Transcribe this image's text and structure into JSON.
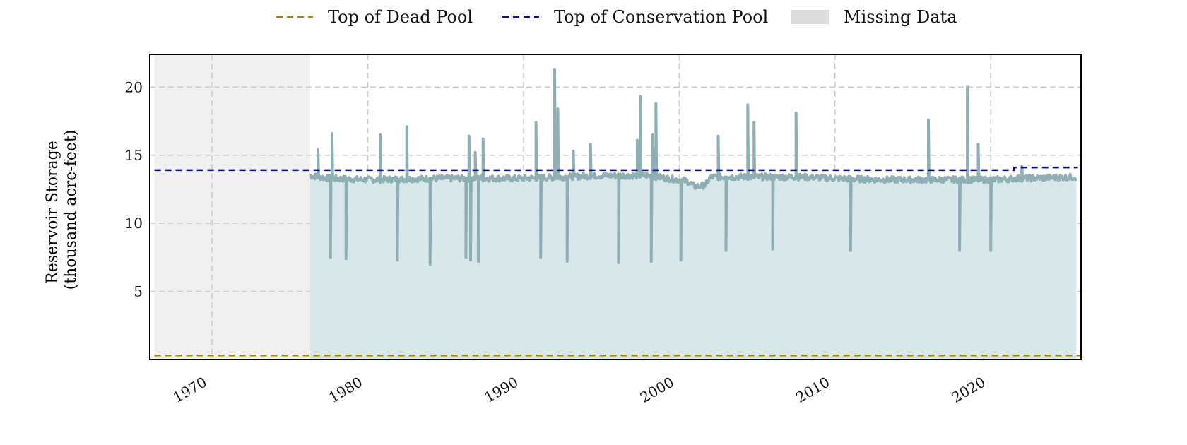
{
  "legend": {
    "dead_pool": "Top of Dead Pool",
    "conservation_pool": "Top of Conservation Pool",
    "missing_data": "Missing Data"
  },
  "colors": {
    "storage_line": "#8fafb5",
    "storage_fill": "#d8e8ea",
    "dead_pool": "#9a8a00",
    "conservation_pool": "#0a0a8c",
    "missing": "#f0f0f0",
    "missing_legend": "#dcdcdc",
    "grid": "#cccccc"
  },
  "chart_data": {
    "type": "area",
    "title": "",
    "ylabel_line1": "Reservoir Storage",
    "ylabel_line2": "(thousand acre-feet)",
    "xlim": [
      1966.0,
      2025.8
    ],
    "ylim": [
      0.0,
      22.4
    ],
    "xticks": [
      1970,
      1980,
      1990,
      2000,
      2010,
      2020
    ],
    "yticks": [
      5,
      10,
      15,
      20
    ],
    "grid": true,
    "legend_position": "top-center",
    "missing_data_range": [
      1966.3,
      1976.3
    ],
    "dead_pool_level": 0.3,
    "conservation_pool": [
      {
        "x": 1966.3,
        "y": 13.9
      },
      {
        "x": 2021.5,
        "y": 13.9
      },
      {
        "x": 2021.5,
        "y": 14.1
      },
      {
        "x": 2025.6,
        "y": 14.1
      }
    ],
    "storage_baseline": [
      [
        1976.3,
        13.5
      ],
      [
        1977.5,
        13.3
      ],
      [
        1980.0,
        13.2
      ],
      [
        1985.0,
        13.3
      ],
      [
        1990.0,
        13.3
      ],
      [
        1995.0,
        13.5
      ],
      [
        1998.0,
        13.5
      ],
      [
        2000.5,
        13.1
      ],
      [
        2001.0,
        12.7
      ],
      [
        2001.7,
        12.8
      ],
      [
        2002.0,
        13.4
      ],
      [
        2005.0,
        13.4
      ],
      [
        2008.0,
        13.4
      ],
      [
        2010.0,
        13.3
      ],
      [
        2013.0,
        13.2
      ],
      [
        2015.0,
        13.2
      ],
      [
        2018.0,
        13.2
      ],
      [
        2020.0,
        13.2
      ],
      [
        2022.0,
        13.3
      ],
      [
        2025.5,
        13.4
      ]
    ],
    "storage_spikes": [
      [
        1976.8,
        15.4
      ],
      [
        1977.7,
        16.6
      ],
      [
        1980.8,
        16.5
      ],
      [
        1982.5,
        17.1
      ],
      [
        1986.5,
        16.4
      ],
      [
        1986.9,
        15.2
      ],
      [
        1987.4,
        16.2
      ],
      [
        1990.8,
        17.4
      ],
      [
        1992.0,
        21.3
      ],
      [
        1992.2,
        18.4
      ],
      [
        1993.2,
        15.3
      ],
      [
        1994.3,
        15.8
      ],
      [
        1997.3,
        16.1
      ],
      [
        1997.5,
        19.3
      ],
      [
        1998.3,
        16.5
      ],
      [
        1998.5,
        18.8
      ],
      [
        2002.5,
        16.4
      ],
      [
        2004.4,
        18.7
      ],
      [
        2004.8,
        17.4
      ],
      [
        2007.5,
        18.1
      ],
      [
        2016.0,
        17.6
      ],
      [
        2018.5,
        20.0
      ],
      [
        2019.2,
        15.8
      ],
      [
        2022.0,
        14.2
      ]
    ],
    "storage_dips": [
      [
        1977.6,
        7.5
      ],
      [
        1978.6,
        7.4
      ],
      [
        1981.9,
        7.3
      ],
      [
        1984.0,
        7.0
      ],
      [
        1986.3,
        7.5
      ],
      [
        1986.6,
        7.3
      ],
      [
        1987.1,
        7.2
      ],
      [
        1991.1,
        7.5
      ],
      [
        1992.8,
        7.2
      ],
      [
        1996.1,
        7.1
      ],
      [
        1998.2,
        7.2
      ],
      [
        2000.1,
        7.3
      ],
      [
        2003.0,
        8.0
      ],
      [
        2006.0,
        8.1
      ],
      [
        2011.0,
        8.0
      ],
      [
        2018.0,
        8.0
      ],
      [
        2020.0,
        8.0
      ]
    ]
  }
}
